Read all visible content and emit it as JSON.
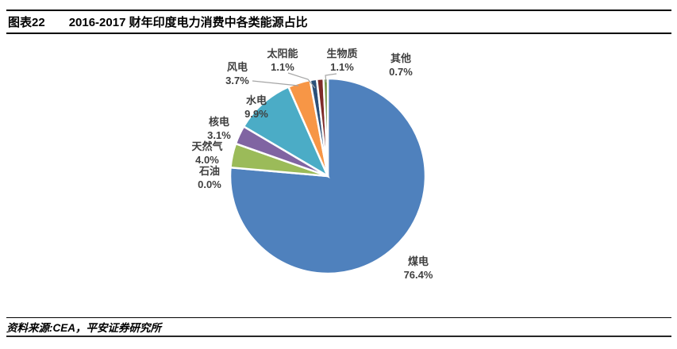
{
  "header": {
    "figure_label": "图表22",
    "title": "2016-2017 财年印度电力消费中各类能源占比"
  },
  "footer": {
    "source": "资料来源:CEA，平安证券研究所"
  },
  "chart_data": {
    "type": "pie",
    "title": "2016-2017 财年印度电力消费中各类能源占比",
    "unit": "percent",
    "start_angle_deg": 0,
    "direction": "clockwise",
    "legend": "none",
    "label_style": "outside: category name above percentage",
    "slices": [
      {
        "name": "煤电",
        "value": 76.4,
        "pct_label": "76.4%",
        "color": "#4F81BD"
      },
      {
        "name": "石油",
        "value": 0.0,
        "pct_label": "0.0%",
        "color": "#C0504D"
      },
      {
        "name": "天然气",
        "value": 4.0,
        "pct_label": "4.0%",
        "color": "#9BBB59"
      },
      {
        "name": "核电",
        "value": 3.1,
        "pct_label": "3.1%",
        "color": "#8064A2"
      },
      {
        "name": "水电",
        "value": 9.9,
        "pct_label": "9.9%",
        "color": "#4BACC6"
      },
      {
        "name": "风电",
        "value": 3.7,
        "pct_label": "3.7%",
        "color": "#F79646"
      },
      {
        "name": "太阳能",
        "value": 1.1,
        "pct_label": "1.1%",
        "color": "#2B4F78"
      },
      {
        "name": "生物质",
        "value": 1.1,
        "pct_label": "1.1%",
        "color": "#7E2B28"
      },
      {
        "name": "其他",
        "value": 0.7,
        "pct_label": "0.7%",
        "color": "#6F8F3F"
      }
    ]
  }
}
